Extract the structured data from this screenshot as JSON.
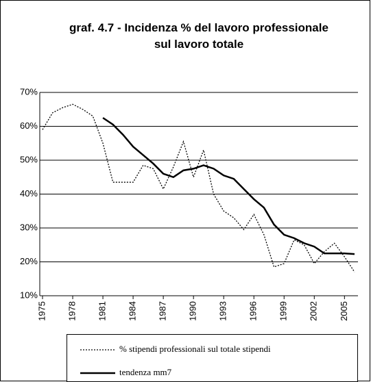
{
  "chart_data": {
    "type": "line",
    "title": [
      "graf. 4.7 - Incidenza % del lavoro professionale",
      "sul lavoro totale"
    ],
    "x": [
      1975,
      1976,
      1977,
      1978,
      1979,
      1980,
      1981,
      1982,
      1983,
      1984,
      1985,
      1986,
      1987,
      1988,
      1989,
      1990,
      1991,
      1992,
      1993,
      1994,
      1995,
      1996,
      1997,
      1998,
      1999,
      2000,
      2001,
      2002,
      2003,
      2004,
      2005,
      2006
    ],
    "xlim": [
      1975,
      2006
    ],
    "xticks": [
      1975,
      1978,
      1981,
      1984,
      1987,
      1990,
      1993,
      1996,
      1999,
      2002,
      2005
    ],
    "ylim": [
      10,
      70
    ],
    "yticks": [
      {
        "value": 10,
        "label": "10%"
      },
      {
        "value": 20,
        "label": "20%"
      },
      {
        "value": 30,
        "label": "30%"
      },
      {
        "value": 40,
        "label": "40%"
      },
      {
        "value": 50,
        "label": "50%"
      },
      {
        "value": 60,
        "label": "60%"
      },
      {
        "value": 70,
        "label": "70%"
      }
    ],
    "grid": true,
    "series": [
      {
        "name": "% stipendi professionali sul totale stipendi",
        "color": "#000000",
        "dash": true,
        "values": [
          59,
          64,
          65.5,
          66.5,
          65,
          63,
          55,
          43.5,
          43.5,
          43.5,
          48.5,
          47.5,
          41.5,
          48,
          55.5,
          45,
          53,
          40,
          35,
          33,
          29.5,
          34,
          28,
          18.5,
          19.5,
          26.5,
          25,
          19.5,
          23,
          25.5,
          21.5,
          17
        ]
      },
      {
        "name": "tendenza mm7",
        "color": "#000000",
        "dash": false,
        "values": [
          null,
          null,
          null,
          null,
          null,
          null,
          62.5,
          60.5,
          57.5,
          54,
          51.5,
          49,
          46,
          45,
          47,
          47.5,
          48.5,
          47.5,
          45.5,
          44.5,
          41.5,
          38.5,
          36,
          31,
          28,
          27,
          25.5,
          24.5,
          22.5,
          22.5,
          22.5,
          22.3
        ]
      }
    ]
  }
}
